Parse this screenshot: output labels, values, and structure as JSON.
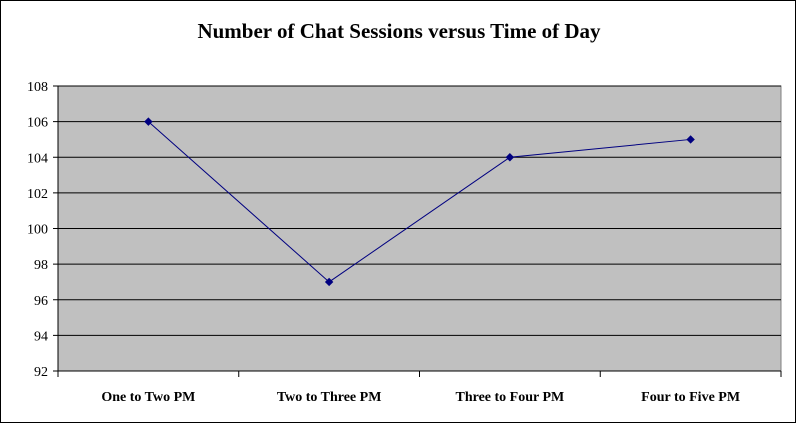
{
  "chart_data": {
    "type": "line",
    "title": "Number of Chat Sessions versus Time of Day",
    "xlabel": "",
    "ylabel": "",
    "categories": [
      "One to Two PM",
      "Two to Three PM",
      "Three to Four PM",
      "Four to Five PM"
    ],
    "series": [
      {
        "values": [
          106,
          97,
          104,
          105
        ],
        "color": "#000080"
      }
    ],
    "ylim": [
      92,
      108
    ],
    "yticks": [
      92,
      94,
      96,
      98,
      100,
      102,
      104,
      106,
      108
    ],
    "grid": true,
    "legend": "none",
    "plot_background": "#c0c0c0",
    "gridline_color": "#000000"
  }
}
